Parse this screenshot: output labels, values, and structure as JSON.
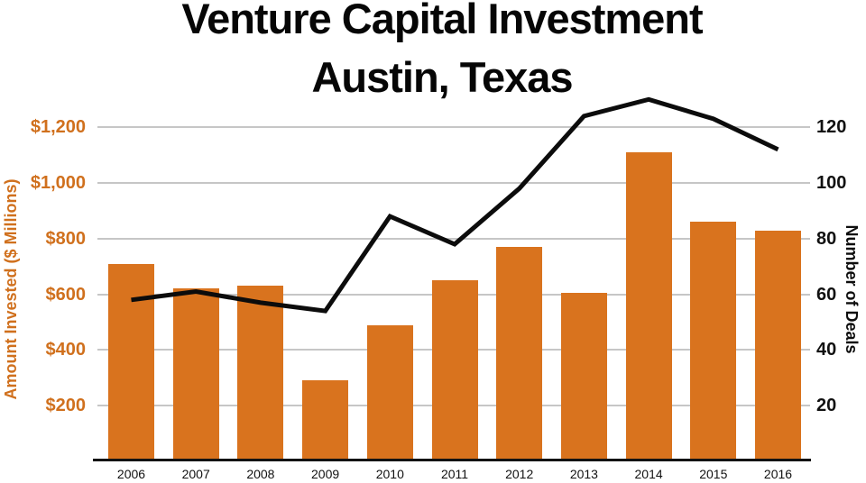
{
  "title": {
    "line1": "Venture Capital Investment",
    "line2": "Austin, Texas"
  },
  "chart_data": {
    "type": "bar+line",
    "title": "Venture Capital Investment",
    "subtitle": "Austin, Texas",
    "categories": [
      "2006",
      "2007",
      "2008",
      "2009",
      "2010",
      "2011",
      "2012",
      "2013",
      "2014",
      "2015",
      "2016"
    ],
    "series": [
      {
        "name": "Amount Invested ($ Millions)",
        "type": "bar",
        "axis": "left",
        "color": "#d9731e",
        "values": [
          710,
          620,
          630,
          290,
          490,
          650,
          770,
          605,
          1110,
          860,
          830
        ]
      },
      {
        "name": "Number of Deals",
        "type": "line",
        "axis": "right",
        "color": "#0c0c0c",
        "values": [
          58,
          61,
          57,
          54,
          88,
          78,
          98,
          124,
          130,
          123,
          112
        ]
      }
    ],
    "left_axis": {
      "label": "Amount Invested ($ Millions)",
      "tick_labels": [
        "$200",
        "$400",
        "$600",
        "$800",
        "$1,000",
        "$1,200"
      ],
      "tick_values": [
        200,
        400,
        600,
        800,
        1000,
        1200
      ],
      "range": [
        0,
        1300
      ],
      "color": "#d0701d"
    },
    "right_axis": {
      "label": "Number of Deals",
      "tick_labels": [
        "20",
        "40",
        "60",
        "80",
        "100",
        "120"
      ],
      "tick_values": [
        20,
        40,
        60,
        80,
        100,
        120
      ],
      "range": [
        0,
        130
      ],
      "color": "#111111"
    },
    "grid": true,
    "legend": false,
    "colors": {
      "background": "#ffffff",
      "gridline": "#c6c6c6",
      "axis_line": "#131313",
      "bar": "#d9731e",
      "line": "#0c0c0c"
    }
  }
}
